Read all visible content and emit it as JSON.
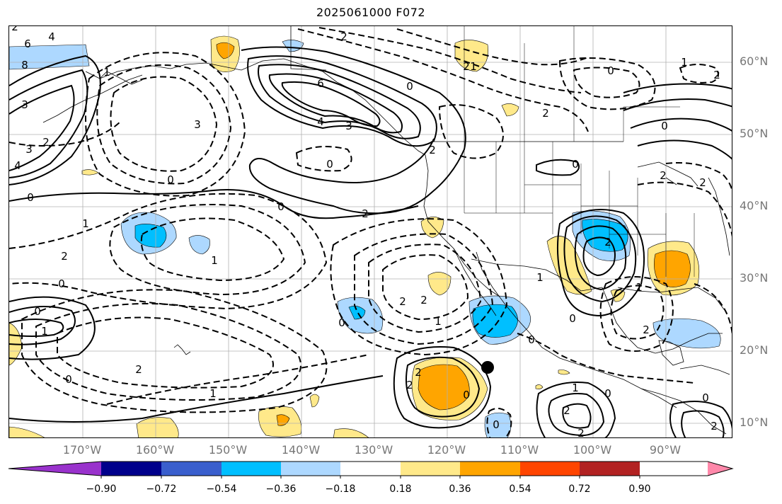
{
  "title": "2025061000 F072",
  "lat_labels": [
    "60°N",
    "50°N",
    "40°N",
    "30°N",
    "20°N",
    "10°N"
  ],
  "lon_labels": [
    "170°W",
    "160°W",
    "150°W",
    "140°W",
    "130°W",
    "120°W",
    "110°W",
    "100°W",
    "90°W"
  ],
  "colorbar": {
    "colors": [
      "#9932cc",
      "#00008b",
      "#3a5fcd",
      "#00bfff",
      "#add8ff",
      "#ffffff",
      "#ffe98a",
      "#ffa500",
      "#ff4500",
      "#b22222",
      "#ff88aa"
    ],
    "tick_labels": [
      "−0.90",
      "−0.72",
      "−0.54",
      "−0.36",
      "−0.18",
      "0.18",
      "0.36",
      "0.54",
      "0.72",
      "0.90"
    ]
  },
  "contour_labels": [
    "6",
    "8",
    "4",
    "4",
    "3",
    "2",
    "3",
    "0",
    "1",
    "2",
    "0",
    "3",
    "6",
    "4",
    "3",
    "0",
    "0",
    "2",
    "0",
    "2",
    "2",
    "0",
    "1",
    "0",
    "0",
    "1",
    "1",
    "2",
    "2",
    "2",
    "0",
    "0",
    "2",
    "0",
    "2",
    "0",
    "1",
    "1",
    "2",
    "2",
    "2",
    "1",
    "0",
    "0",
    "1",
    "2",
    "0",
    "1",
    "2",
    "2",
    "0",
    "2",
    "0",
    "1",
    "2",
    "2",
    "2",
    "0",
    "1",
    "2"
  ]
}
